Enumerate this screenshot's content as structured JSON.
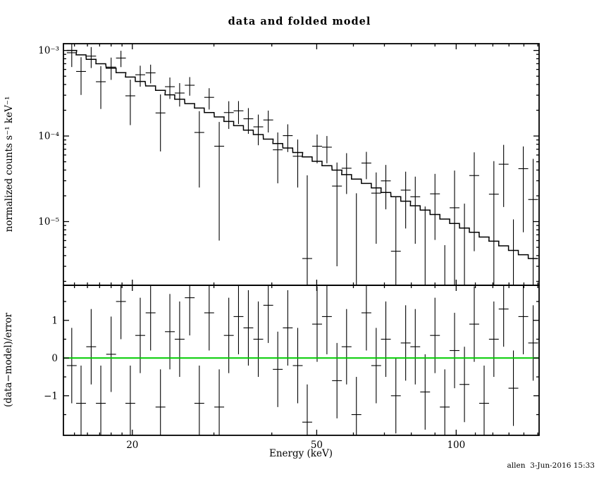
{
  "header": {
    "title": "data and folded model"
  },
  "footer": {
    "signature": "allen  3-Jun-2016 15:33"
  },
  "chart_data": {
    "type": "scatter",
    "title": "data and folded model",
    "xlabel": "Energy (keV)",
    "ylabel_top": "normalized counts s⁻¹ keV⁻¹",
    "ylabel_bottom": "(data−model)/error",
    "xscale": "log",
    "yscale_top": "log",
    "xlim": [
      14.2,
      151
    ],
    "ylim_top": [
      1.8e-06,
      0.0012
    ],
    "ylim_bottom": [
      -2.05,
      1.93
    ],
    "x_major_ticks": [
      20,
      50,
      100
    ],
    "x_major_labels": [
      "20",
      "50",
      "100"
    ],
    "x_minor_ticks": [
      15,
      16,
      17,
      18,
      19,
      30,
      40,
      60,
      70,
      80,
      90,
      110,
      120,
      130,
      140,
      150
    ],
    "y_top_major_ticks": [
      0.001,
      0.0001,
      1e-05
    ],
    "y_top_major_labels": [
      "10⁻³",
      "10⁻⁴",
      "10⁻⁵"
    ],
    "y_bottom_major_ticks": [
      1,
      0,
      -1
    ],
    "y_bottom_major_labels": [
      "1",
      "0",
      "−1"
    ],
    "y_bottom_minor_ticks": [
      1.5,
      0.5,
      -0.5,
      -1.5
    ],
    "zero_line_color": "#00cc00",
    "model_color": "#000000",
    "data_color": "#000000",
    "bin_half_width_factor": 1.0247,
    "series": [
      {
        "name": "data",
        "x": [
          14.8,
          15.5,
          16.3,
          17.1,
          18.0,
          18.9,
          19.8,
          20.8,
          21.9,
          23.0,
          24.1,
          25.3,
          26.6,
          27.9,
          29.3,
          30.8,
          32.3,
          33.9,
          35.6,
          37.4,
          39.3,
          41.2,
          43.3,
          45.5,
          47.7,
          50.1,
          52.6,
          55.3,
          58.0,
          60.9,
          64.0,
          67.2,
          70.5,
          74.1,
          77.8,
          81.6,
          85.7,
          90.0,
          94.5,
          99.2,
          104.2,
          109.4,
          114.9,
          120.6,
          126.6,
          132.9,
          139.6,
          146.6
        ],
        "y": [
          0.00094,
          0.000568,
          0.000859,
          0.000431,
          0.000639,
          0.000815,
          0.000295,
          0.00052,
          0.000547,
          0.000186,
          0.000377,
          0.000318,
          0.000392,
          0.00011,
          0.000283,
          7.6e-05,
          0.000188,
          0.000197,
          0.000159,
          0.000128,
          0.000154,
          6.9e-05,
          0.000101,
          5.8e-05,
          3.7e-06,
          7.6e-05,
          7.4e-05,
          2.6e-05,
          4.2e-05,
          1.4e-06,
          4.83e-05,
          2.15e-05,
          2.99e-05,
          4.5e-06,
          2.33e-05,
          1.95e-05,
          1e-06,
          2.11e-05,
          -1.27e-05,
          1.45e-05,
          -9.8e-06,
          3.45e-05,
          -2.7e-05,
          2.09e-05,
          4.68e-05,
          -1.94e-05,
          4.15e-05,
          1.81e-05
        ],
        "yerr": [
          0.0003,
          0.000266,
          0.000236,
          0.000224,
          0.000186,
          0.000176,
          0.000161,
          0.000143,
          0.000135,
          0.00012,
          0.000106,
          9.7e-05,
          9.6e-05,
          8.5e-05,
          7.9e-05,
          7e-05,
          6.7e-05,
          5.9e-05,
          5.3e-05,
          5e-05,
          4.4e-05,
          4.1e-05,
          3.6e-05,
          3.3e-05,
          3.1e-05,
          2.8e-05,
          2.6e-05,
          2.3e-05,
          2.1e-05,
          2e-05,
          1.7e-05,
          1.6e-05,
          1.6e-05,
          1.5e-05,
          1.5e-05,
          1.4e-05,
          1.4e-05,
          1.5e-05,
          1.8e-05,
          2.5e-05,
          2.6e-05,
          3e-05,
          2.8e-05,
          3e-05,
          3.2e-05,
          3e-05,
          3.4e-05,
          3.6e-05
        ]
      },
      {
        "name": "folded model",
        "x": [
          14.8,
          15.5,
          16.3,
          17.1,
          18.0,
          18.9,
          19.8,
          20.8,
          21.9,
          23.0,
          24.1,
          25.3,
          26.6,
          27.9,
          29.3,
          30.8,
          32.3,
          33.9,
          35.6,
          37.4,
          39.3,
          41.2,
          43.3,
          45.5,
          47.7,
          50.1,
          52.6,
          55.3,
          58.0,
          60.9,
          64.0,
          67.2,
          70.5,
          74.1,
          77.8,
          81.6,
          85.7,
          90.0,
          94.5,
          99.2,
          104.2,
          109.4,
          114.9,
          120.6,
          126.6,
          132.9,
          139.6,
          146.6
        ],
        "y": [
          0.001,
          0.000888,
          0.000788,
          0.000699,
          0.00062,
          0.000551,
          0.000489,
          0.000434,
          0.000385,
          0.000342,
          0.000303,
          0.000269,
          0.000239,
          0.000212,
          0.000188,
          0.000167,
          0.000148,
          0.000132,
          0.000117,
          0.000104,
          9.19e-05,
          8.16e-05,
          7.24e-05,
          6.42e-05,
          5.7e-05,
          5.06e-05,
          4.49e-05,
          3.99e-05,
          3.54e-05,
          3.14e-05,
          2.79e-05,
          2.47e-05,
          2.19e-05,
          1.95e-05,
          1.73e-05,
          1.53e-05,
          1.36e-05,
          1.21e-05,
          1.07e-05,
          9.5e-06,
          8.4e-06,
          7.5e-06,
          6.6e-06,
          5.9e-06,
          5.2e-06,
          4.6e-06,
          4.1e-06,
          3.7e-06
        ]
      },
      {
        "name": "residuals",
        "x": [
          14.8,
          15.5,
          16.3,
          17.1,
          18.0,
          18.9,
          19.8,
          20.8,
          21.9,
          23.0,
          24.1,
          25.3,
          26.6,
          27.9,
          29.3,
          30.8,
          32.3,
          33.9,
          35.6,
          37.4,
          39.3,
          41.2,
          43.3,
          45.5,
          47.7,
          50.1,
          52.6,
          55.3,
          58.0,
          60.9,
          64.0,
          67.2,
          70.5,
          74.1,
          77.8,
          81.6,
          85.7,
          90.0,
          94.5,
          99.2,
          104.2,
          109.4,
          114.9,
          120.6,
          126.6,
          132.9,
          139.6,
          146.6
        ],
        "y": [
          -0.2,
          -1.2,
          0.3,
          -1.2,
          0.1,
          1.5,
          -1.2,
          0.6,
          1.2,
          -1.3,
          0.7,
          0.5,
          1.6,
          -1.2,
          1.2,
          -1.3,
          0.6,
          1.1,
          0.8,
          0.5,
          1.4,
          -0.3,
          0.8,
          -0.2,
          -1.7,
          0.9,
          1.1,
          -0.6,
          0.3,
          -1.5,
          1.2,
          -0.2,
          0.5,
          -1.0,
          0.4,
          0.3,
          -0.9,
          0.6,
          -1.3,
          0.2,
          -0.7,
          0.9,
          -1.2,
          0.5,
          1.3,
          -0.8,
          1.1,
          0.4
        ],
        "yerr_uniform": 1.0
      }
    ]
  }
}
